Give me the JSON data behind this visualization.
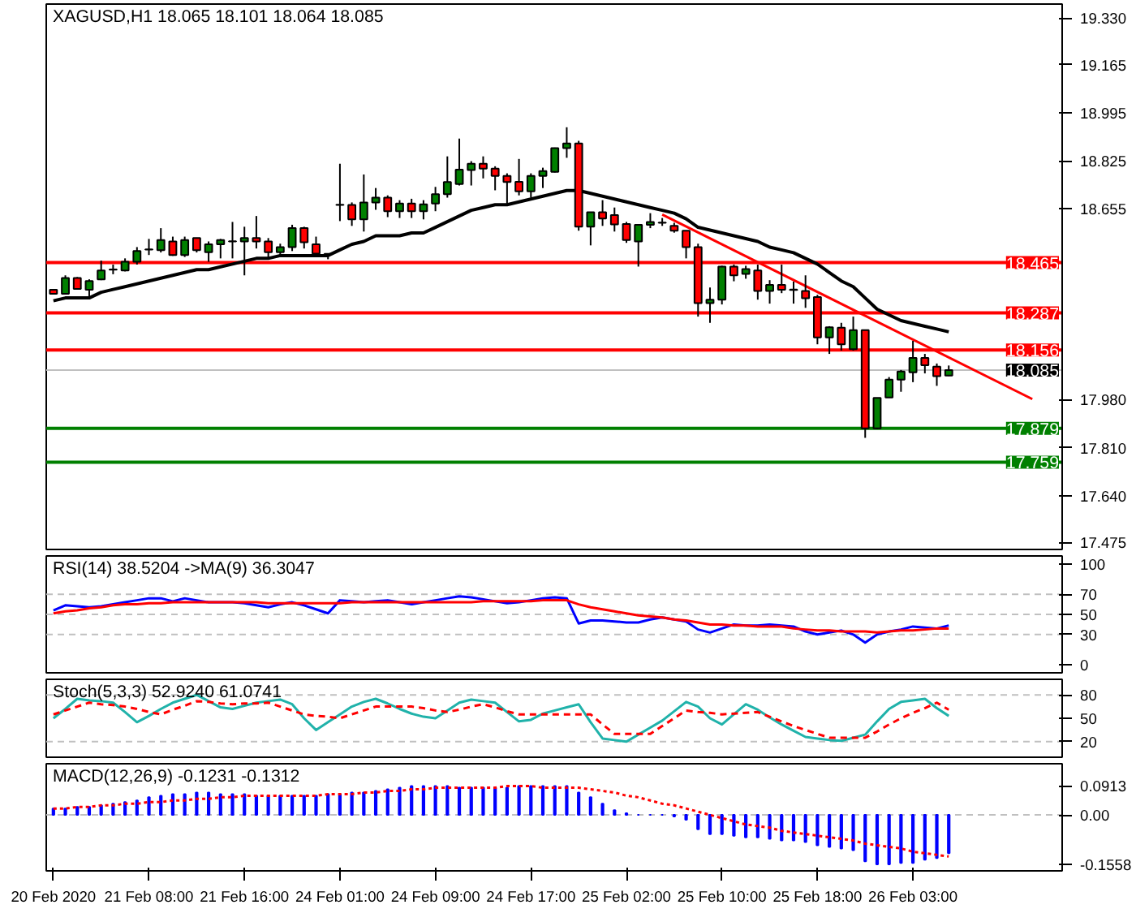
{
  "chart_data": [
    {
      "type": "candlestick",
      "title": "XAGUSD,H1  18.065 18.101 18.064 18.085",
      "categories": [
        null,
        null,
        null,
        null,
        null,
        null,
        null,
        null,
        null,
        null,
        null,
        null,
        null,
        null,
        null,
        null,
        null,
        null,
        null,
        null,
        null,
        null,
        null,
        null,
        null,
        null,
        null,
        null,
        null,
        null,
        null,
        null,
        null,
        null,
        null,
        null,
        null,
        null,
        null,
        null,
        null,
        null,
        null,
        null,
        null,
        null,
        null,
        null,
        null,
        null,
        null,
        null,
        null,
        null,
        null,
        null,
        null,
        null,
        null,
        null,
        null,
        null,
        null,
        null,
        null,
        null,
        null,
        null,
        null,
        null,
        null,
        null,
        null,
        null,
        null,
        null,
        null,
        null,
        null,
        null,
        null,
        null,
        null,
        null,
        null
      ],
      "ohlc": [
        [
          18.369,
          18.372,
          18.352,
          18.355
        ],
        [
          18.355,
          18.42,
          18.352,
          18.411
        ],
        [
          18.411,
          18.414,
          18.369,
          18.372
        ],
        [
          18.369,
          18.406,
          18.343,
          18.4
        ],
        [
          18.406,
          18.472,
          18.403,
          18.437
        ],
        [
          18.44,
          18.458,
          18.424,
          18.441
        ],
        [
          18.437,
          18.48,
          18.434,
          18.468
        ],
        [
          18.468,
          18.52,
          18.458,
          18.506
        ],
        [
          18.511,
          18.549,
          18.492,
          18.512
        ],
        [
          18.509,
          18.587,
          18.501,
          18.545
        ],
        [
          18.54,
          18.557,
          18.489,
          18.492
        ],
        [
          18.492,
          18.557,
          18.485,
          18.545
        ],
        [
          18.552,
          18.553,
          18.501,
          18.509
        ],
        [
          18.502,
          18.54,
          18.468,
          18.53
        ],
        [
          18.53,
          18.549,
          18.48,
          18.545
        ],
        [
          18.54,
          18.609,
          18.48,
          18.541
        ],
        [
          18.54,
          18.592,
          18.42,
          18.552
        ],
        [
          18.552,
          18.63,
          18.515,
          18.54
        ],
        [
          18.54,
          18.552,
          18.48,
          18.502
        ],
        [
          18.502,
          18.532,
          18.489,
          18.52
        ],
        [
          18.52,
          18.599,
          18.506,
          18.587
        ],
        [
          18.587,
          18.592,
          18.515,
          18.537
        ],
        [
          18.53,
          18.557,
          18.489,
          18.497
        ],
        [
          18.496,
          18.497,
          18.477,
          18.494
        ],
        [
          18.669,
          18.815,
          18.612,
          18.67
        ],
        [
          18.669,
          18.678,
          18.595,
          18.618
        ],
        [
          18.618,
          18.777,
          18.575,
          18.678
        ],
        [
          18.678,
          18.729,
          18.652,
          18.695
        ],
        [
          18.695,
          18.703,
          18.626,
          18.647
        ],
        [
          18.647,
          18.686,
          18.623,
          18.674
        ],
        [
          18.674,
          18.691,
          18.623,
          18.647
        ],
        [
          18.647,
          18.686,
          18.618,
          18.671
        ],
        [
          18.674,
          18.733,
          18.647,
          18.707
        ],
        [
          18.707,
          18.841,
          18.695,
          18.75
        ],
        [
          18.743,
          18.904,
          18.738,
          18.794
        ],
        [
          18.793,
          18.824,
          18.738,
          18.815
        ],
        [
          18.815,
          18.841,
          18.763,
          18.798
        ],
        [
          18.798,
          18.806,
          18.721,
          18.772
        ],
        [
          18.772,
          18.781,
          18.674,
          18.75
        ],
        [
          18.751,
          18.832,
          18.703,
          18.717
        ],
        [
          18.717,
          18.781,
          18.695,
          18.772
        ],
        [
          18.772,
          18.801,
          18.729,
          18.789
        ],
        [
          18.786,
          18.872,
          18.784,
          18.87
        ],
        [
          18.87,
          18.944,
          18.836,
          18.887
        ],
        [
          18.887,
          18.896,
          18.578,
          18.592
        ],
        [
          18.592,
          18.644,
          18.526,
          18.643
        ],
        [
          18.643,
          18.686,
          18.595,
          18.621
        ],
        [
          18.633,
          18.66,
          18.575,
          18.6
        ],
        [
          18.602,
          18.609,
          18.535,
          18.545
        ],
        [
          18.54,
          18.6,
          18.451,
          18.599
        ],
        [
          18.599,
          18.64,
          18.587,
          18.609
        ],
        [
          18.606,
          18.623,
          18.595,
          18.607
        ],
        [
          18.595,
          18.606,
          18.571,
          18.578
        ],
        [
          18.578,
          18.578,
          18.48,
          18.52
        ],
        [
          18.52,
          18.532,
          18.274,
          18.322
        ],
        [
          18.322,
          18.377,
          18.252,
          18.334
        ],
        [
          18.334,
          18.454,
          18.317,
          18.451
        ],
        [
          18.451,
          18.458,
          18.399,
          18.42
        ],
        [
          18.425,
          18.454,
          18.408,
          18.442
        ],
        [
          18.437,
          18.458,
          18.334,
          18.365
        ],
        [
          18.365,
          18.403,
          18.32,
          18.386
        ],
        [
          18.386,
          18.458,
          18.357,
          18.369
        ],
        [
          18.37,
          18.398,
          18.32,
          18.368
        ],
        [
          18.365,
          18.42,
          18.305,
          18.339
        ],
        [
          18.343,
          18.351,
          18.176,
          18.2
        ],
        [
          18.2,
          18.24,
          18.142,
          18.236
        ],
        [
          18.235,
          18.252,
          18.154,
          18.176
        ],
        [
          18.159,
          18.274,
          18.154,
          18.226
        ],
        [
          18.226,
          18.226,
          17.845,
          17.879
        ],
        [
          17.879,
          17.987,
          17.876,
          17.986
        ],
        [
          17.988,
          18.06,
          17.987,
          18.051
        ],
        [
          18.051,
          18.085,
          18.008,
          18.08
        ],
        [
          18.077,
          18.188,
          18.042,
          18.128
        ],
        [
          18.128,
          18.142,
          18.073,
          18.102
        ],
        [
          18.097,
          18.108,
          18.029,
          18.063
        ],
        [
          18.065,
          18.101,
          18.064,
          18.085
        ],
        null,
        null,
        null,
        null,
        null,
        null,
        null,
        null,
        null
      ],
      "series": [
        {
          "type": "line",
          "color": "#000000",
          "values": [
            18.33,
            18.34,
            18.34,
            18.34,
            18.36,
            18.37,
            18.38,
            18.39,
            18.4,
            18.41,
            18.42,
            18.43,
            18.44,
            18.44,
            18.45,
            18.46,
            18.47,
            18.48,
            18.48,
            18.49,
            18.49,
            18.49,
            18.49,
            18.49,
            18.51,
            18.53,
            18.54,
            18.56,
            18.56,
            18.56,
            18.57,
            18.57,
            18.59,
            18.61,
            18.63,
            18.65,
            18.66,
            18.67,
            18.67,
            18.68,
            18.69,
            18.7,
            18.71,
            18.72,
            18.72,
            18.71,
            18.7,
            18.69,
            18.68,
            18.67,
            18.66,
            18.65,
            18.64,
            18.62,
            18.59,
            18.58,
            18.57,
            18.56,
            18.55,
            18.54,
            18.52,
            18.51,
            18.5,
            18.48,
            18.46,
            18.43,
            18.4,
            18.38,
            18.34,
            18.3,
            18.28,
            18.26,
            18.25,
            18.24,
            18.23,
            18.22,
            null,
            null,
            null,
            null,
            null,
            null,
            null,
            null,
            null
          ]
        },
        {
          "type": "line",
          "color": "#ff0000",
          "values": [
            null,
            null,
            null,
            null,
            null,
            null,
            null,
            null,
            null,
            null,
            null,
            null,
            null,
            null,
            null,
            null,
            null,
            null,
            null,
            null,
            null,
            null,
            null,
            null,
            null,
            null,
            null,
            null,
            null,
            null,
            null,
            null,
            null,
            null,
            null,
            null,
            null,
            null,
            null,
            null,
            null,
            null,
            null,
            null,
            null,
            null,
            null,
            null,
            null,
            null,
            null,
            18.635,
            null,
            null,
            null,
            null,
            null,
            null,
            null,
            null,
            null,
            null,
            null,
            null,
            null,
            null,
            null,
            null,
            null,
            null,
            null,
            null,
            null,
            null,
            null,
            null,
            null,
            null,
            null,
            null,
            null,
            null,
            17.982,
            null,
            null
          ]
        }
      ],
      "ref_lines": [
        {
          "axis": "y",
          "value": 18.465,
          "label": "18.465",
          "color": "#ff0000"
        },
        {
          "axis": "y",
          "value": 18.287,
          "label": "18.287",
          "color": "#ff0000"
        },
        {
          "axis": "y",
          "value": 18.156,
          "label": "18.156",
          "color": "#ff0000"
        },
        {
          "axis": "y",
          "value": 18.085,
          "label": "18.085",
          "color": "#c0c0c0"
        },
        {
          "axis": "y",
          "value": 17.879,
          "label": "17.879",
          "color": "#008000"
        },
        {
          "axis": "y",
          "value": 17.759,
          "label": "17.759",
          "color": "#008000"
        }
      ],
      "ylim": [
        17.45,
        19.38
      ],
      "yticks": [
        {
          "value": 19.33,
          "label": "19.330"
        },
        {
          "value": 19.165,
          "label": "19.165"
        },
        {
          "value": 18.995,
          "label": "18.995"
        },
        {
          "value": 18.825,
          "label": "18.825"
        },
        {
          "value": 18.655,
          "label": "18.655"
        },
        {
          "value": 17.98,
          "label": "17.980"
        },
        {
          "value": 17.81,
          "label": "17.810"
        },
        {
          "value": 17.64,
          "label": "17.640"
        },
        {
          "value": 17.475,
          "label": "17.475"
        }
      ],
      "tick_labels": "y",
      "grid": false
    },
    {
      "type": "line",
      "title": "RSI(14) 38.5204  ->MA(9) 36.3047",
      "categories": [
        null,
        null,
        null,
        null,
        null,
        null,
        null,
        null,
        null,
        null,
        null,
        null,
        null,
        null,
        null,
        null,
        null,
        null,
        null,
        null,
        null,
        null,
        null,
        null,
        null,
        null,
        null,
        null,
        null,
        null,
        null,
        null,
        null,
        null,
        null,
        null,
        null,
        null,
        null,
        null,
        null,
        null,
        null,
        null,
        null,
        null,
        null,
        null,
        null,
        null,
        null,
        null,
        null,
        null,
        null,
        null,
        null,
        null,
        null,
        null,
        null,
        null,
        null,
        null,
        null,
        null,
        null,
        null,
        null,
        null,
        null,
        null,
        null,
        null,
        null,
        null,
        null,
        null,
        null,
        null,
        null,
        null,
        null,
        null,
        null
      ],
      "series": [
        {
          "color": "#0000ff",
          "values": [
            54,
            59,
            58,
            57,
            58,
            60,
            62,
            64,
            66,
            66,
            63,
            66,
            64,
            62,
            62,
            62,
            61,
            59,
            57,
            60,
            62,
            59,
            55,
            51,
            64,
            63,
            62,
            63,
            64,
            62,
            60,
            62,
            64,
            66,
            68,
            67,
            65,
            63,
            61,
            62,
            64,
            66,
            67,
            66,
            41,
            44,
            44,
            43,
            42,
            42,
            45,
            47,
            45,
            43,
            35,
            32,
            36,
            40,
            39,
            39,
            40,
            39,
            38,
            33,
            30,
            32,
            34,
            30,
            22,
            30,
            33,
            35,
            38,
            37,
            36,
            39,
            null,
            null,
            null,
            null,
            null,
            null,
            null,
            null,
            null
          ]
        },
        {
          "color": "#ff0000",
          "values": [
            51,
            53,
            54,
            56,
            57,
            59,
            60,
            60,
            61,
            61,
            62,
            62,
            62,
            62,
            62,
            62,
            62,
            62,
            61,
            61,
            61,
            61,
            61,
            61,
            61,
            62,
            62,
            62,
            62,
            62,
            62,
            62,
            62,
            62,
            62,
            62,
            63,
            63,
            63,
            63,
            63,
            64,
            64,
            64,
            60,
            57,
            55,
            53,
            51,
            49,
            48,
            47,
            45,
            44,
            42,
            40,
            40,
            39,
            39,
            38,
            38,
            38,
            36,
            35,
            34,
            34,
            33,
            33,
            33,
            32,
            33,
            34,
            34,
            35,
            36,
            36,
            null,
            null,
            null,
            null,
            null,
            null,
            null,
            null,
            null
          ]
        }
      ],
      "ref_lines": [
        {
          "axis": "y",
          "value": 70,
          "color": "#c0c0c0",
          "line_style": "dashed"
        },
        {
          "axis": "y",
          "value": 50,
          "color": "#c0c0c0",
          "line_style": "dashed"
        },
        {
          "axis": "y",
          "value": 30,
          "color": "#c0c0c0",
          "line_style": "dashed"
        }
      ],
      "ylim": [
        -8,
        108
      ],
      "yticks": [
        0,
        30,
        50,
        70,
        100
      ],
      "tick_labels": "y",
      "grid": false
    },
    {
      "type": "line",
      "title": "Stoch(5,3,3) 52.9240 61.0741",
      "categories": [
        null,
        null,
        null,
        null,
        null,
        null,
        null,
        null,
        null,
        null,
        null,
        null,
        null,
        null,
        null,
        null,
        null,
        null,
        null,
        null,
        null,
        null,
        null,
        null,
        null,
        null,
        null,
        null,
        null,
        null,
        null,
        null,
        null,
        null,
        null,
        null,
        null,
        null,
        null,
        null,
        null,
        null,
        null,
        null,
        null,
        null,
        null,
        null,
        null,
        null,
        null,
        null,
        null,
        null,
        null,
        null,
        null,
        null,
        null,
        null,
        null,
        null,
        null,
        null,
        null,
        null,
        null,
        null,
        null,
        null,
        null,
        null,
        null,
        null,
        null,
        null,
        null,
        null,
        null,
        null,
        null,
        null,
        null,
        null,
        null
      ],
      "series": [
        {
          "color": "#20b2aa",
          "values": [
            50,
            62,
            75,
            73,
            72,
            70,
            58,
            45,
            53,
            62,
            70,
            75,
            80,
            72,
            64,
            62,
            66,
            70,
            72,
            74,
            68,
            50,
            35,
            45,
            55,
            65,
            71,
            75,
            69,
            62,
            56,
            52,
            50,
            60,
            70,
            74,
            72,
            70,
            58,
            46,
            48,
            56,
            60,
            64,
            68,
            45,
            24,
            22,
            20,
            29,
            38,
            47,
            59,
            71,
            65,
            50,
            42,
            55,
            68,
            61,
            51,
            42,
            34,
            26,
            24,
            22,
            21,
            25,
            29,
            46,
            62,
            71,
            73,
            75,
            63,
            53,
            null,
            null,
            null,
            null,
            null,
            null,
            null,
            null,
            null
          ]
        },
        {
          "color": "#ff0000",
          "line_style": "dashed",
          "values": [
            55,
            60,
            65,
            70,
            68,
            67,
            65,
            62,
            58,
            55,
            61,
            66,
            72,
            71,
            69,
            68,
            69,
            69,
            70,
            65,
            60,
            55,
            53,
            52,
            50,
            55,
            60,
            65,
            65,
            65,
            65,
            63,
            60,
            58,
            61,
            65,
            68,
            64,
            59,
            55,
            55,
            55,
            55,
            55,
            55,
            55,
            42,
            30,
            30,
            30,
            30,
            40,
            50,
            60,
            58,
            57,
            55,
            56,
            57,
            58,
            52,
            46,
            40,
            35,
            30,
            25,
            25,
            25,
            25,
            33,
            42,
            50,
            57,
            63,
            70,
            61,
            null,
            null,
            null,
            null,
            null,
            null,
            null,
            null,
            null
          ]
        }
      ],
      "ref_lines": [
        {
          "axis": "y",
          "value": 80,
          "color": "#c0c0c0",
          "line_style": "dashed"
        },
        {
          "axis": "y",
          "value": 20,
          "color": "#c0c0c0",
          "line_style": "dashed"
        }
      ],
      "ylim": [
        0,
        100
      ],
      "yticks": [
        20,
        50,
        80
      ],
      "tick_labels": "y",
      "grid": false
    },
    {
      "type": "bar",
      "title": "MACD(12,26,9) -0.1231 -0.1312",
      "categories": [
        "20 Feb 2020",
        null,
        null,
        null,
        null,
        null,
        null,
        null,
        "21 Feb 08:00",
        null,
        null,
        null,
        null,
        null,
        null,
        null,
        "21 Feb 16:00",
        null,
        null,
        null,
        null,
        null,
        null,
        null,
        "24 Feb 01:00",
        null,
        null,
        null,
        null,
        null,
        null,
        null,
        "24 Feb 09:00",
        null,
        null,
        null,
        null,
        null,
        null,
        null,
        "24 Feb 17:00",
        null,
        null,
        null,
        null,
        null,
        null,
        null,
        "25 Feb 02:00",
        null,
        null,
        null,
        null,
        null,
        null,
        null,
        "25 Feb 10:00",
        null,
        null,
        null,
        null,
        null,
        null,
        null,
        "25 Feb 18:00",
        null,
        null,
        null,
        null,
        null,
        null,
        null,
        "26 Feb 03:00",
        null,
        null,
        null,
        null,
        null,
        null,
        null,
        null,
        null,
        null,
        null,
        null
      ],
      "series": [
        {
          "color": "#0000ff",
          "values": [
            0.02,
            0.02,
            0.025,
            0.025,
            0.03,
            0.035,
            0.04,
            0.045,
            0.055,
            0.06,
            0.065,
            0.065,
            0.07,
            0.07,
            0.065,
            0.065,
            0.065,
            0.06,
            0.06,
            0.06,
            0.06,
            0.06,
            0.06,
            0.065,
            0.065,
            0.07,
            0.07,
            0.075,
            0.08,
            0.085,
            0.09,
            0.09,
            0.09,
            0.09,
            0.085,
            0.085,
            0.085,
            0.085,
            0.085,
            0.09,
            0.09,
            0.09,
            0.09,
            0.09,
            0.07,
            0.055,
            0.035,
            0.015,
            0.005,
            0.0,
            0.0,
            0.0,
            -0.005,
            -0.015,
            -0.045,
            -0.06,
            -0.06,
            -0.065,
            -0.07,
            -0.07,
            -0.075,
            -0.08,
            -0.08,
            -0.085,
            -0.095,
            -0.1,
            -0.105,
            -0.11,
            -0.145,
            -0.155,
            -0.155,
            -0.15,
            -0.15,
            -0.14,
            -0.135,
            -0.12,
            null,
            null,
            null,
            null,
            null,
            null,
            null,
            null,
            null
          ]
        },
        {
          "type": "line",
          "color": "#ff0000",
          "line_style": "dotted",
          "values": [
            0.02,
            0.02,
            0.025,
            0.025,
            0.03,
            0.03,
            0.035,
            0.035,
            0.04,
            0.04,
            0.045,
            0.045,
            0.05,
            0.05,
            0.055,
            0.055,
            0.06,
            0.06,
            0.06,
            0.06,
            0.06,
            0.06,
            0.06,
            0.065,
            0.065,
            0.065,
            0.07,
            0.07,
            0.075,
            0.075,
            0.08,
            0.08,
            0.085,
            0.085,
            0.085,
            0.085,
            0.085,
            0.085,
            0.09,
            0.09,
            0.09,
            0.085,
            0.085,
            0.085,
            0.085,
            0.08,
            0.075,
            0.07,
            0.06,
            0.055,
            0.045,
            0.035,
            0.03,
            0.02,
            0.01,
            0.0,
            -0.01,
            -0.02,
            -0.03,
            -0.035,
            -0.04,
            -0.05,
            -0.055,
            -0.06,
            -0.065,
            -0.07,
            -0.075,
            -0.08,
            -0.09,
            -0.095,
            -0.1,
            -0.105,
            -0.115,
            -0.12,
            -0.125,
            -0.13,
            null,
            null,
            null,
            null,
            null,
            null,
            null,
            null,
            null
          ]
        }
      ],
      "ref_lines": [
        {
          "axis": "y",
          "value": 0,
          "color": "#c0c0c0",
          "line_style": "dashed"
        }
      ],
      "ylim": [
        -0.175,
        0.16
      ],
      "yticks": [
        {
          "value": 0.0913,
          "label": "0.0913"
        },
        {
          "value": 0,
          "label": "0.00"
        },
        {
          "value": -0.1558,
          "label": "-0.1558"
        }
      ],
      "grid": false
    }
  ]
}
